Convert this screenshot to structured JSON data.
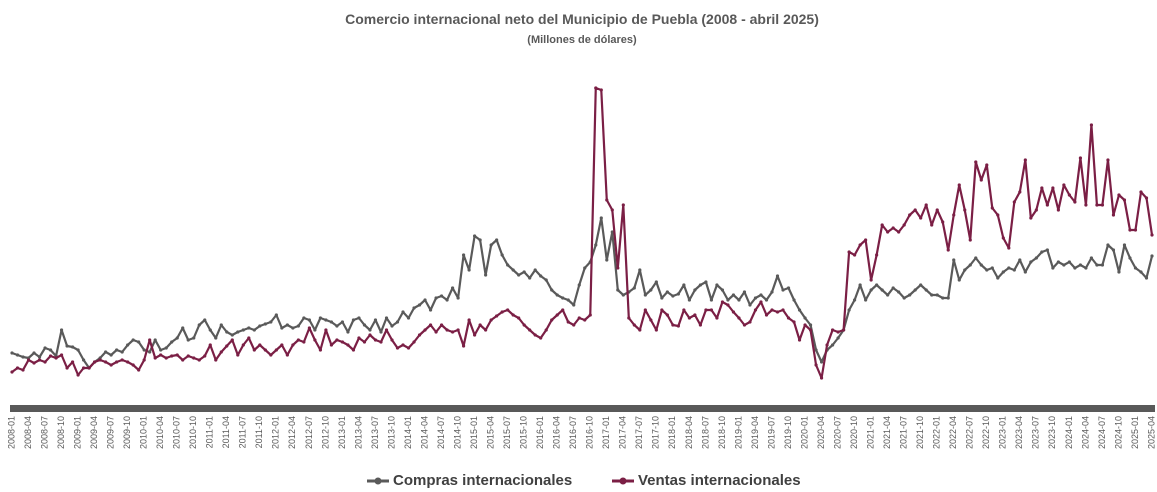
{
  "chart_data": {
    "type": "line",
    "title": "Comercio internacional neto del Municipio de Puebla (2008 - abril 2025)",
    "subtitle": "(Millones de dólares)",
    "categories": [
      "2008-01",
      null,
      null,
      "2008-04",
      null,
      null,
      "2008-07",
      null,
      null,
      "2008-10",
      null,
      null,
      "2009-01",
      null,
      null,
      "2009-04",
      null,
      null,
      "2009-07",
      null,
      null,
      "2009-10",
      null,
      null,
      "2010-01",
      null,
      null,
      "2010-04",
      null,
      null,
      "2010-07",
      null,
      null,
      "2010-10",
      null,
      null,
      "2011-01",
      null,
      null,
      "2011-04",
      null,
      null,
      "2011-07",
      null,
      null,
      "2011-10",
      null,
      null,
      "2012-01",
      null,
      null,
      "2012-04",
      null,
      null,
      "2012-07",
      null,
      null,
      "2012-10",
      null,
      null,
      "2013-01",
      null,
      null,
      "2013-04",
      null,
      null,
      "2013-07",
      null,
      null,
      "2013-10",
      null,
      null,
      "2014-01",
      null,
      null,
      "2014-04",
      null,
      null,
      "2014-07",
      null,
      null,
      "2014-10",
      null,
      null,
      "2015-01",
      null,
      null,
      "2015-04",
      null,
      null,
      "2015-07",
      null,
      null,
      "2015-10",
      null,
      null,
      "2016-01",
      null,
      null,
      "2016-04",
      null,
      null,
      "2016-07",
      null,
      null,
      "2016-10",
      null,
      null,
      "2017-01",
      null,
      null,
      "2017-04",
      null,
      null,
      "2017-07",
      null,
      null,
      "2017-10",
      null,
      null,
      "2018-01",
      null,
      null,
      "2018-04",
      null,
      null,
      "2018-07",
      null,
      null,
      "2018-10",
      null,
      null,
      "2019-01",
      null,
      null,
      "2019-04",
      null,
      null,
      "2019-07",
      null,
      null,
      "2019-10",
      null,
      null,
      "2020-01",
      null,
      null,
      "2020-04",
      null,
      null,
      "2020-07",
      null,
      null,
      "2020-10",
      null,
      null,
      "2021-01",
      null,
      null,
      "2021-04",
      null,
      null,
      "2021-07",
      null,
      null,
      "2021-10",
      null,
      null,
      "2022-01",
      null,
      null,
      "2022-04",
      null,
      null,
      "2022-07",
      null,
      null,
      "2022-10",
      null,
      null,
      "2023-01",
      null,
      null,
      "2023-04",
      null,
      null,
      "2023-07",
      null,
      null,
      "2023-10",
      null,
      null,
      "2024-01",
      null,
      null,
      "2024-04",
      null,
      null,
      "2024-07",
      null,
      null,
      "2024-10",
      null,
      null,
      "2025-01",
      null,
      null,
      "2025-04"
    ],
    "series": [
      {
        "name": "Compras internacionales",
        "color": "#5a5a5a",
        "values": [
          55,
          53,
          51,
          50,
          55,
          51,
          60,
          58,
          52,
          78,
          62,
          61,
          58,
          48,
          40,
          46,
          50,
          56,
          53,
          58,
          56,
          63,
          68,
          66,
          58,
          56,
          68,
          58,
          60,
          66,
          70,
          80,
          68,
          70,
          83,
          88,
          78,
          70,
          83,
          76,
          73,
          76,
          78,
          80,
          78,
          82,
          84,
          86,
          93,
          80,
          83,
          80,
          82,
          90,
          88,
          78,
          90,
          88,
          86,
          82,
          86,
          76,
          88,
          90,
          83,
          78,
          88,
          76,
          90,
          82,
          86,
          96,
          90,
          100,
          103,
          108,
          98,
          110,
          112,
          108,
          120,
          110,
          153,
          138,
          172,
          168,
          133,
          163,
          168,
          153,
          143,
          138,
          133,
          136,
          130,
          138,
          132,
          128,
          118,
          113,
          110,
          108,
          103,
          123,
          140,
          146,
          163,
          190,
          148,
          176,
          118,
          113,
          116,
          120,
          138,
          113,
          118,
          126,
          110,
          116,
          112,
          114,
          123,
          108,
          118,
          123,
          126,
          108,
          123,
          118,
          108,
          113,
          108,
          116,
          103,
          110,
          113,
          108,
          116,
          132,
          118,
          120,
          108,
          98,
          90,
          83,
          58,
          46,
          58,
          63,
          70,
          78,
          98,
          108,
          123,
          108,
          118,
          123,
          118,
          113,
          120,
          116,
          110,
          113,
          118,
          123,
          118,
          113,
          113,
          110,
          110,
          148,
          128,
          138,
          143,
          150,
          143,
          138,
          140,
          130,
          136,
          140,
          138,
          148,
          136,
          146,
          150,
          156,
          158,
          140,
          146,
          143,
          146,
          140,
          143,
          140,
          150,
          143,
          143,
          163,
          158,
          136,
          163,
          150,
          140,
          136,
          130,
          152
        ]
      },
      {
        "name": "Ventas internacionales",
        "color": "#7b1f45",
        "values": [
          36,
          40,
          38,
          48,
          45,
          48,
          46,
          52,
          50,
          53,
          40,
          46,
          33,
          40,
          40,
          46,
          48,
          46,
          43,
          46,
          48,
          46,
          43,
          38,
          48,
          68,
          50,
          53,
          50,
          52,
          53,
          48,
          52,
          50,
          48,
          52,
          63,
          48,
          56,
          62,
          68,
          53,
          63,
          70,
          58,
          63,
          58,
          53,
          58,
          63,
          53,
          63,
          68,
          66,
          80,
          68,
          58,
          78,
          63,
          68,
          66,
          63,
          58,
          70,
          66,
          73,
          68,
          66,
          78,
          68,
          60,
          63,
          60,
          66,
          73,
          78,
          83,
          76,
          83,
          78,
          76,
          78,
          62,
          88,
          73,
          83,
          78,
          88,
          92,
          96,
          98,
          93,
          90,
          83,
          78,
          73,
          70,
          78,
          88,
          93,
          98,
          86,
          83,
          90,
          88,
          93,
          320,
          318,
          208,
          198,
          140,
          203,
          90,
          83,
          78,
          98,
          88,
          78,
          98,
          93,
          83,
          82,
          98,
          90,
          93,
          83,
          98,
          98,
          90,
          106,
          103,
          96,
          90,
          83,
          86,
          98,
          106,
          93,
          98,
          96,
          98,
          90,
          86,
          68,
          83,
          78,
          43,
          30,
          63,
          78,
          76,
          78,
          156,
          153,
          163,
          168,
          128,
          153,
          183,
          176,
          180,
          176,
          183,
          193,
          198,
          190,
          203,
          183,
          198,
          186,
          158,
          193,
          223,
          198,
          168,
          246,
          228,
          243,
          200,
          193,
          170,
          160,
          206,
          216,
          248,
          190,
          198,
          220,
          203,
          220,
          198,
          223,
          213,
          206,
          250,
          203,
          283,
          203,
          203,
          248,
          193,
          213,
          208,
          178,
          178,
          216,
          210,
          173
        ]
      }
    ],
    "ylim": [
      0,
      340
    ]
  }
}
